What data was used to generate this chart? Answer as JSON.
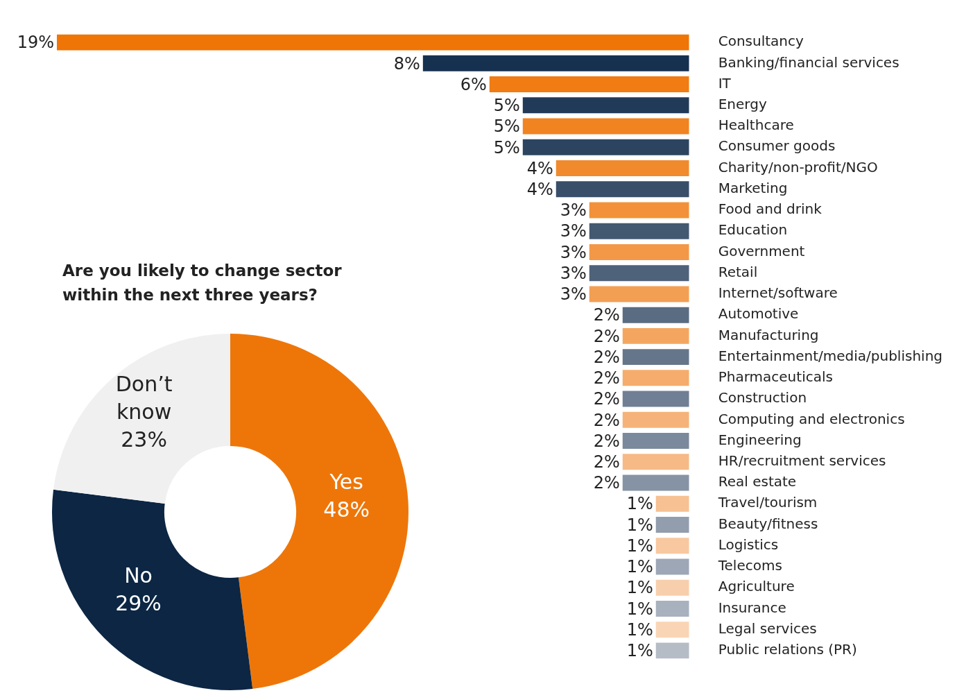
{
  "chart_data": [
    {
      "type": "bar",
      "orientation": "horizontal",
      "data_labels": true,
      "categories": [
        "Consultancy",
        "Banking/financial services",
        "IT",
        "Energy",
        "Healthcare",
        "Consumer goods",
        "Charity/non-profit/NGO",
        "Marketing",
        "Food and drink",
        "Education",
        "Government",
        "Retail",
        "Internet/software",
        "Automotive",
        "Manufacturing",
        "Entertainment/media/publishing",
        "Pharmaceuticals",
        "Construction",
        "Computing and electronics",
        "Engineering",
        "HR/recruitment services",
        "Real estate",
        "Travel/tourism",
        "Beauty/fitness",
        "Logistics",
        "Telecoms",
        "Agriculture",
        "Insurance",
        "Legal services",
        "Public relations (PR)"
      ],
      "values": [
        19,
        8,
        6,
        5,
        5,
        5,
        4,
        4,
        3,
        3,
        3,
        3,
        3,
        2,
        2,
        2,
        2,
        2,
        2,
        2,
        2,
        2,
        1,
        1,
        1,
        1,
        1,
        1,
        1,
        1
      ],
      "value_labels": [
        "19%",
        "8%",
        "6%",
        "5%",
        "5%",
        "5%",
        "4%",
        "4%",
        "3%",
        "3%",
        "3%",
        "3%",
        "3%",
        "2%",
        "2%",
        "2%",
        "2%",
        "2%",
        "2%",
        "2%",
        "2%",
        "2%",
        "1%",
        "1%",
        "1%",
        "1%",
        "1%",
        "1%",
        "1%",
        "1%"
      ],
      "colors": [
        "#ef7506",
        "#16304f",
        "#f07c13",
        "#213a58",
        "#f18320",
        "#2c4460",
        "#f18a2c",
        "#384e69",
        "#f29139",
        "#435871",
        "#f39846",
        "#4e627a",
        "#f39f53",
        "#596c82",
        "#f4a660",
        "#65768b",
        "#f5ac6c",
        "#707f93",
        "#f5b379",
        "#7b899c",
        "#f6ba86",
        "#8693a4",
        "#f7c193",
        "#929dad",
        "#f8c8a0",
        "#9da7b5",
        "#f8cfac",
        "#a8b2be",
        "#f9d5b5",
        "#b5bcc6"
      ]
    },
    {
      "type": "donut",
      "title": "Are you likely to change sector within the next three years?",
      "data_labels": true,
      "categories": [
        "Yes",
        "No",
        "Don’t know"
      ],
      "values": [
        48,
        29,
        23
      ],
      "value_labels": [
        "48%",
        "29%",
        "23%"
      ],
      "colors": [
        "#ee7609",
        "#0c2644",
        "#f0f0f0"
      ]
    }
  ]
}
